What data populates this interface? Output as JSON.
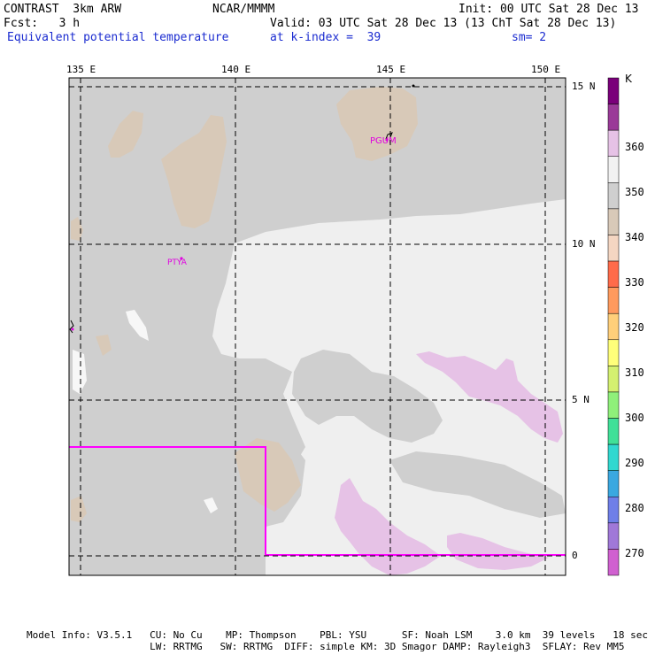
{
  "header": {
    "model": "CONTRAST  3km ARW",
    "org": "NCAR/MMMM",
    "init": "Init: 00 UTC Sat 28 Dec 13",
    "fcst": "Fcst:   3 h",
    "valid": "Valid: 03 UTC Sat 28 Dec 13 (13 ChT Sat 28 Dec 13)",
    "field": "Equivalent potential temperature",
    "level": "at k-index =  39",
    "smooth": "sm= 2"
  },
  "map": {
    "lon_labels": [
      "135 E",
      "140 E",
      "145 E",
      "150 E"
    ],
    "lat_labels": [
      "15 N",
      "10 N",
      "5 N",
      "0"
    ],
    "stations": [
      {
        "id": "PGUM"
      },
      {
        "id": "PTYA"
      }
    ],
    "colors": {
      "land": "#d8c9b8",
      "frame": "#000000",
      "box": "#ff00ff",
      "station": "#e000e0"
    }
  },
  "legend": {
    "unit": "K",
    "labels": [
      "360",
      "350",
      "340",
      "330",
      "320",
      "310",
      "300",
      "290",
      "280",
      "270"
    ],
    "colors": [
      "#7a007a",
      "#9a3a98",
      "#e6c2e6",
      "#f2f2f2",
      "#cfcfcf",
      "#d8c9b8",
      "#f4d6c2",
      "#ff6b4a",
      "#ff9a5e",
      "#ffcf7a",
      "#ffff7a",
      "#d4f070",
      "#8ff07a",
      "#40e098",
      "#30d8d0",
      "#3aa8e0",
      "#6f7fe8",
      "#a078d8",
      "#d060d0"
    ]
  },
  "footer": {
    "line1": "Model Info: V3.5.1   CU: No Cu    MP: Thompson    PBL: YSU      SF: Noah LSM    3.0 km  39 levels   18 sec",
    "line2": "                     LW: RRTMG   SW: RRTMG  DIFF: simple KM: 3D Smagor DAMP: Rayleigh3  SFLAY: Rev MM5"
  }
}
